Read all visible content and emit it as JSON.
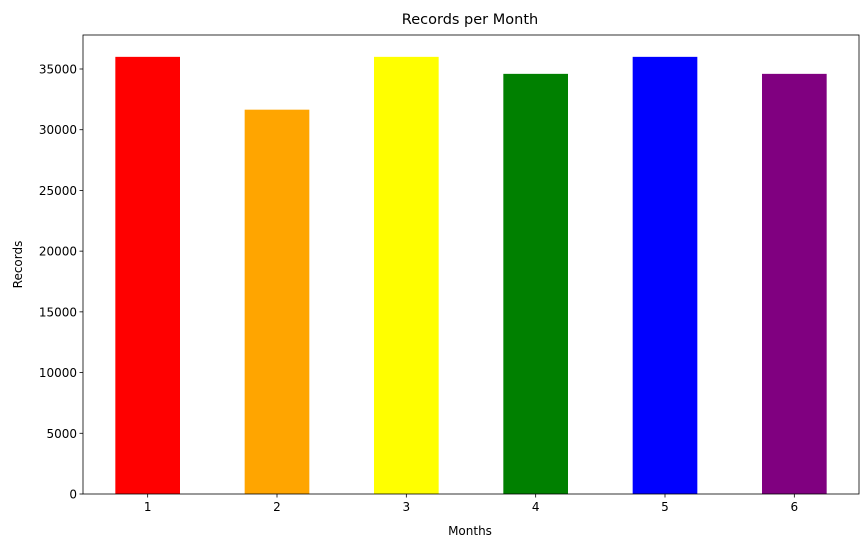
{
  "chart_data": {
    "type": "bar",
    "title": "Records per Month",
    "xlabel": "Months",
    "ylabel": "Records",
    "categories": [
      "1",
      "2",
      "3",
      "4",
      "5",
      "6"
    ],
    "values": [
      36000,
      31650,
      36000,
      34600,
      36000,
      34600
    ],
    "colors": [
      "#ff0000",
      "#ffa500",
      "#ffff00",
      "#008000",
      "#0000ff",
      "#800080"
    ],
    "ylim": [
      0,
      37800
    ],
    "yticks": [
      0,
      5000,
      10000,
      15000,
      20000,
      25000,
      30000,
      35000
    ],
    "grid": false,
    "legend": "none"
  }
}
